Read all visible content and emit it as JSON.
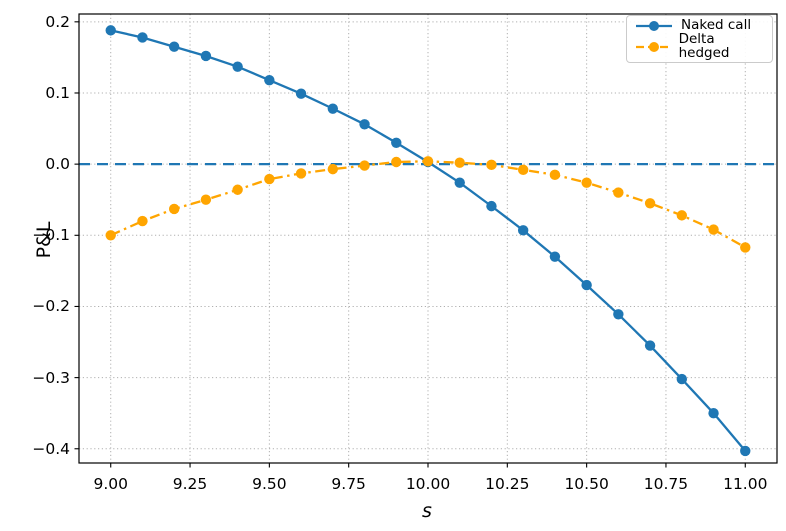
{
  "chart_data": {
    "type": "line",
    "title": "",
    "xlabel": "s",
    "ylabel": "P&L",
    "xlim": [
      8.9,
      11.1
    ],
    "ylim": [
      -0.42,
      0.211
    ],
    "grid": true,
    "grid_color": "#b0b0b0",
    "axis_color": "#000000",
    "x_ticks": {
      "values": [
        9.0,
        9.25,
        9.5,
        9.75,
        10.0,
        10.25,
        10.5,
        10.75,
        11.0
      ],
      "labels": [
        "9.00",
        "9.25",
        "9.50",
        "9.75",
        "10.00",
        "10.25",
        "10.50",
        "10.75",
        "11.00"
      ]
    },
    "y_ticks": {
      "values": [
        -0.4,
        -0.3,
        -0.2,
        -0.1,
        0.0,
        0.1,
        0.2
      ],
      "labels": [
        "−0.4",
        "−0.3",
        "−0.2",
        "−0.1",
        "0.0",
        "0.1",
        "0.2"
      ]
    },
    "x": [
      9.0,
      9.1,
      9.2,
      9.3,
      9.4,
      9.5,
      9.6,
      9.7,
      9.8,
      9.9,
      10.0,
      10.1,
      10.2,
      10.3,
      10.4,
      10.5,
      10.6,
      10.7,
      10.8,
      10.9,
      11.0
    ],
    "series": [
      {
        "name": "Naked call",
        "color": "#1f77b4",
        "line_style": "solid",
        "marker": "circle",
        "values": [
          0.188,
          0.178,
          0.165,
          0.152,
          0.137,
          0.118,
          0.099,
          0.078,
          0.056,
          0.03,
          0.003,
          -0.026,
          -0.059,
          -0.093,
          -0.13,
          -0.17,
          -0.211,
          -0.255,
          -0.302,
          -0.35,
          -0.403
        ]
      },
      {
        "name": "Delta hedged",
        "color": "#ffa500",
        "line_style": "dashdot",
        "marker": "circle",
        "values": [
          -0.1,
          -0.08,
          -0.063,
          -0.05,
          -0.036,
          -0.021,
          -0.013,
          -0.007,
          -0.002,
          0.003,
          0.004,
          0.002,
          -0.001,
          -0.008,
          -0.015,
          -0.026,
          -0.04,
          -0.055,
          -0.072,
          -0.092,
          -0.117
        ]
      }
    ],
    "reference_line": {
      "value": 0.0,
      "color": "#1f77b4",
      "line_style": "dashed"
    },
    "legend": {
      "position": "upper right",
      "entries": [
        "Naked call",
        "Delta hedged"
      ]
    }
  }
}
